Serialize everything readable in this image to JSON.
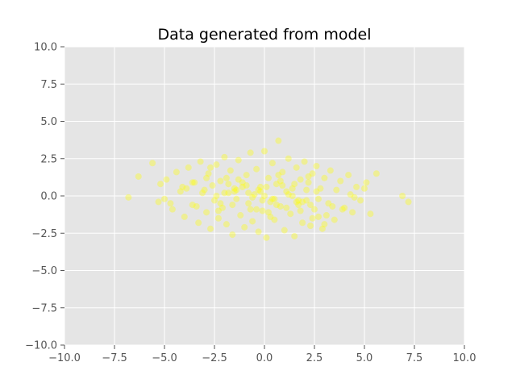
{
  "chart_data": {
    "type": "scatter",
    "title": "Data generated from model",
    "xlabel": "",
    "ylabel": "",
    "xlim": [
      -10,
      10
    ],
    "ylim": [
      -10,
      10
    ],
    "x_ticks": [
      -10,
      -7.5,
      -5,
      -2.5,
      0,
      2.5,
      5,
      7.5,
      10
    ],
    "y_ticks": [
      -10,
      -7.5,
      -5,
      -2.5,
      0,
      2.5,
      5,
      7.5,
      10
    ],
    "x_tick_labels": [
      "−10.0",
      "−7.5",
      "−5.0",
      "−2.5",
      "0.0",
      "2.5",
      "5.0",
      "7.5",
      "10.0"
    ],
    "y_tick_labels": [
      "−10.0",
      "−7.5",
      "−5.0",
      "−2.5",
      "0.0",
      "2.5",
      "5.0",
      "7.5",
      "10.0"
    ],
    "grid": true,
    "point_color": "#ffff00",
    "point_alpha": 0.08,
    "background_color": "#e5e5e5",
    "grid_color": "#ffffff",
    "series": [
      {
        "x": [
          -6.8,
          -6.3,
          -5.6,
          -5.3,
          -5.2,
          -4.9,
          -4.6,
          -4.4,
          -4.2,
          -4.0,
          -3.8,
          -3.6,
          -3.5,
          -3.3,
          -3.2,
          -3.0,
          -2.9,
          -2.8,
          -2.7,
          -2.6,
          -2.5,
          -2.4,
          -2.3,
          -2.2,
          -2.1,
          -2.0,
          -1.9,
          -1.8,
          -1.7,
          -1.6,
          -1.5,
          -1.4,
          -1.3,
          -1.2,
          -1.1,
          -1.0,
          -0.9,
          -0.8,
          -0.7,
          -0.6,
          -0.5,
          -0.4,
          -0.3,
          -0.2,
          -0.1,
          0.0,
          0.1,
          0.2,
          0.3,
          0.4,
          0.5,
          0.6,
          0.7,
          0.8,
          0.9,
          1.0,
          1.1,
          1.2,
          1.3,
          1.4,
          1.5,
          1.6,
          1.7,
          1.8,
          1.9,
          2.0,
          2.1,
          2.2,
          2.3,
          2.4,
          2.5,
          2.6,
          2.7,
          2.8,
          2.9,
          3.0,
          3.2,
          3.3,
          3.5,
          3.6,
          3.8,
          4.0,
          4.2,
          4.4,
          4.6,
          4.8,
          5.1,
          5.3,
          5.6,
          6.9,
          7.2,
          -1.4,
          0.6,
          0.9,
          -0.8,
          1.7,
          -2.2,
          2.6,
          -3.6,
          3.4,
          -5.0,
          5.0,
          -1.9,
          0.2,
          1.2,
          -0.4,
          0.7,
          -1.1,
          1.9,
          -2.7,
          2.4,
          -3.1,
          3.0,
          -0.2,
          0.4,
          -0.6,
          1.5,
          -1.6,
          2.1,
          -2.3,
          0.0,
          0.3,
          -0.9,
          1.1,
          -1.3,
          1.8,
          -2.0,
          2.7,
          -2.9,
          3.9,
          -4.1,
          4.3,
          -4.7,
          0.8,
          -0.3,
          0.5,
          -0.7,
          1.4,
          -1.5,
          2.3,
          -0.1,
          0.1,
          -1.8,
          1.6,
          -2.4,
          2.2,
          -3.4,
          3.1,
          -3.9,
          4.5
        ],
        "y": [
          -0.1,
          1.3,
          2.2,
          -0.4,
          0.8,
          1.1,
          -0.9,
          1.6,
          0.3,
          -1.4,
          1.9,
          -0.6,
          0.9,
          -1.8,
          2.3,
          0.4,
          -1.1,
          1.5,
          -2.2,
          0.7,
          -0.3,
          2.1,
          -1.5,
          1.0,
          -0.8,
          2.6,
          -1.9,
          0.2,
          1.7,
          -2.6,
          0.5,
          -0.2,
          2.4,
          -1.3,
          0.9,
          -2.1,
          1.4,
          -0.5,
          2.9,
          -1.7,
          0.1,
          1.8,
          -2.4,
          0.6,
          -1.0,
          3.0,
          -2.8,
          1.2,
          -0.4,
          2.2,
          -1.6,
          0.8,
          3.7,
          -0.7,
          1.6,
          -2.3,
          0.3,
          2.5,
          -1.2,
          0.0,
          -2.7,
          1.9,
          -0.6,
          1.1,
          -1.8,
          2.3,
          -0.3,
          0.9,
          -2.0,
          1.5,
          -0.9,
          2.0,
          -1.4,
          0.5,
          -2.2,
          1.2,
          -0.5,
          1.7,
          -1.6,
          0.4,
          1.0,
          -0.8,
          1.4,
          -1.1,
          0.6,
          -0.3,
          0.9,
          -1.2,
          1.5,
          0.0,
          -0.4,
          0.4,
          -0.6,
          0.7,
          0.2,
          -0.3,
          -0.5,
          0.3,
          0.9,
          -0.7,
          -0.2,
          0.5,
          1.2,
          -1.1,
          0.1,
          -0.9,
          1.4,
          0.6,
          -0.4,
          1.9,
          -1.5,
          0.2,
          -1.9,
          0.3,
          -0.2,
          -0.1,
          0.8,
          -0.6,
          0.4,
          -1.0,
          0.0,
          -1.4,
          0.7,
          -0.8,
          1.1,
          -1.0,
          0.2,
          -0.2,
          1.2,
          -0.9,
          0.6,
          0.1,
          -0.5,
          1.0,
          0.4,
          -0.2,
          -0.9,
          0.5,
          0.3,
          -0.6,
          -0.3,
          0.6,
          0.8,
          -0.4,
          0.0,
          1.3,
          -0.7,
          -1.3,
          0.5,
          -0.1
        ]
      }
    ]
  }
}
